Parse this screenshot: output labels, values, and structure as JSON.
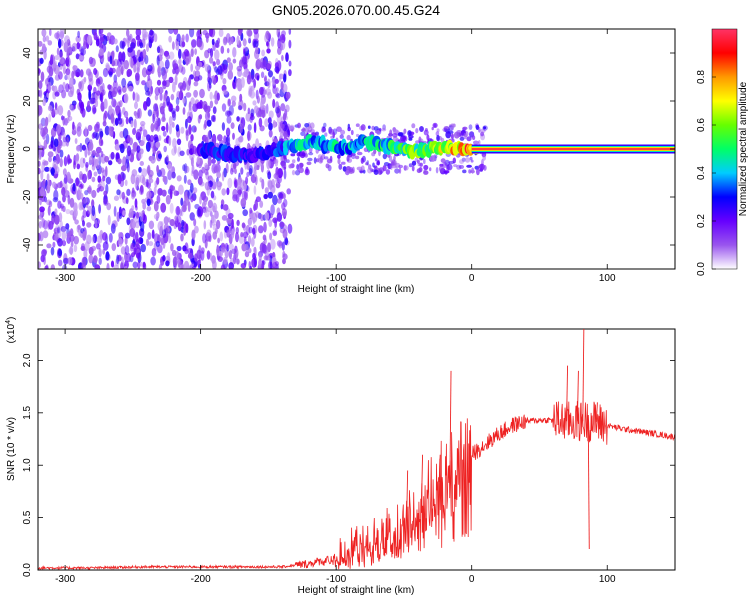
{
  "title": "GN05.2026.070.00.45.G24",
  "chart_data": [
    {
      "type": "heatmap",
      "xlabel": "Height of straight line (km)",
      "ylabel": "Frequency (Hz)",
      "xlim": [
        -320,
        150
      ],
      "ylim": [
        -50,
        50
      ],
      "x_ticks": [
        -300,
        -200,
        -100,
        0,
        100
      ],
      "y_ticks": [
        -40,
        -20,
        0,
        20,
        40
      ],
      "colorbar": {
        "label": "Normalized spectral amplitude",
        "range": [
          0,
          1
        ],
        "ticks": [
          0.0,
          0.2,
          0.4,
          0.6,
          0.8
        ],
        "colormap": [
          "#ffffff",
          "#9955ee",
          "#6600ff",
          "#0000ff",
          "#00ccff",
          "#00ff66",
          "#66ff00",
          "#ffff00",
          "#ff9900",
          "#ff0000",
          "#ff3366"
        ]
      },
      "ridge": [
        {
          "x": -200,
          "y": 0,
          "a": 0.3
        },
        {
          "x": -180,
          "y": -2,
          "a": 0.35
        },
        {
          "x": -160,
          "y": -3,
          "a": 0.3
        },
        {
          "x": -150,
          "y": -1,
          "a": 0.35
        },
        {
          "x": -140,
          "y": 0,
          "a": 0.4
        },
        {
          "x": -130,
          "y": 2,
          "a": 0.45
        },
        {
          "x": -120,
          "y": 3,
          "a": 0.5
        },
        {
          "x": -110,
          "y": 2,
          "a": 0.45
        },
        {
          "x": -100,
          "y": 1,
          "a": 0.5
        },
        {
          "x": -90,
          "y": 1,
          "a": 0.45
        },
        {
          "x": -80,
          "y": 3,
          "a": 0.5
        },
        {
          "x": -70,
          "y": 2,
          "a": 0.5
        },
        {
          "x": -60,
          "y": 1,
          "a": 0.55
        },
        {
          "x": -50,
          "y": 0,
          "a": 0.6
        },
        {
          "x": -40,
          "y": -1,
          "a": 0.65
        },
        {
          "x": -30,
          "y": 0,
          "a": 0.7
        },
        {
          "x": -20,
          "y": 1,
          "a": 0.8
        },
        {
          "x": -10,
          "y": 0,
          "a": 0.85
        },
        {
          "x": 0,
          "y": 0,
          "a": 0.95
        },
        {
          "x": 50,
          "y": 0,
          "a": 1.0
        },
        {
          "x": 100,
          "y": 0,
          "a": 1.0
        },
        {
          "x": 150,
          "y": 0,
          "a": 1.0
        }
      ]
    },
    {
      "type": "line",
      "xlabel": "Height of straight line (km)",
      "ylabel": "SNR (10 * v/v)",
      "y_multiplier": "(x10",
      "y_multiplier_exp": "4",
      "xlim": [
        -320,
        150
      ],
      "ylim": [
        0,
        2.3
      ],
      "x_ticks": [
        -300,
        -200,
        -100,
        0,
        100
      ],
      "y_ticks": [
        0.0,
        0.5,
        1.0,
        1.5,
        2.0
      ],
      "series": [
        {
          "color": "#ee2222",
          "x": [
            -320,
            -280,
            -240,
            -200,
            -160,
            -140,
            -120,
            -100,
            -90,
            -80,
            -70,
            -60,
            -50,
            -40,
            -30,
            -20,
            -10,
            0,
            10,
            20,
            30,
            40,
            50,
            60,
            70,
            80,
            90,
            100,
            110,
            120,
            130,
            140,
            150
          ],
          "y": [
            0.02,
            0.02,
            0.03,
            0.03,
            0.03,
            0.03,
            0.06,
            0.12,
            0.2,
            0.25,
            0.3,
            0.35,
            0.45,
            0.6,
            0.75,
            0.9,
            1.0,
            1.1,
            1.2,
            1.3,
            1.38,
            1.42,
            1.43,
            1.43,
            1.42,
            1.42,
            1.42,
            1.38,
            1.35,
            1.33,
            1.31,
            1.29,
            1.27
          ]
        }
      ],
      "spikes": [
        {
          "x": -48,
          "y": 0.95
        },
        {
          "x": -37,
          "y": 1.1
        },
        {
          "x": -24,
          "y": 1.1
        },
        {
          "x": -16,
          "y": 1.9
        },
        {
          "x": 70,
          "y": 1.95
        },
        {
          "x": 78,
          "y": 1.9
        },
        {
          "x": 82,
          "y": 2.3
        },
        {
          "x": 86,
          "y": 0.2
        },
        {
          "x": 92,
          "y": 1.6
        }
      ]
    }
  ]
}
